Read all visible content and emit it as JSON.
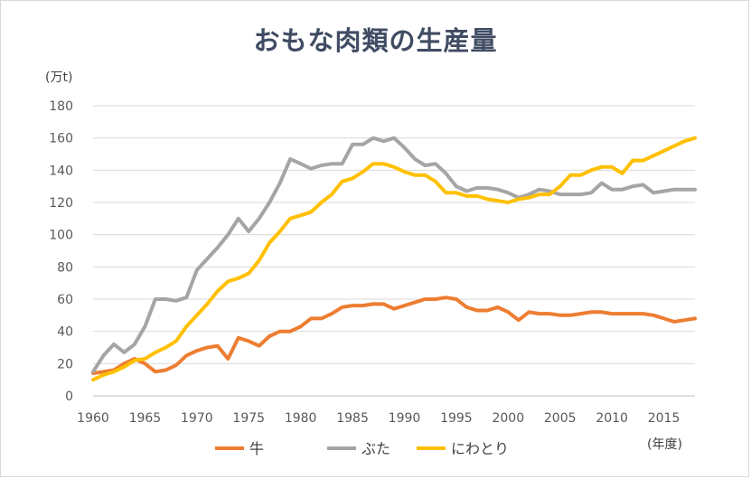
{
  "chart_data": {
    "type": "line",
    "title": "おもな肉類の生産量",
    "ylabel": "(万t)",
    "xlabel": "(年度)",
    "xlim": [
      1960,
      2018
    ],
    "ylim": [
      0,
      180
    ],
    "x_ticks": [
      1960,
      1965,
      1970,
      1975,
      1980,
      1985,
      1990,
      1995,
      2000,
      2005,
      2010,
      2015
    ],
    "y_ticks": [
      0,
      20,
      40,
      60,
      80,
      100,
      120,
      140,
      160,
      180
    ],
    "grid": "horizontal",
    "legend_position": "bottom",
    "x": [
      1960,
      1961,
      1962,
      1963,
      1964,
      1965,
      1966,
      1967,
      1968,
      1969,
      1970,
      1971,
      1972,
      1973,
      1974,
      1975,
      1976,
      1977,
      1978,
      1979,
      1980,
      1981,
      1982,
      1983,
      1984,
      1985,
      1986,
      1987,
      1988,
      1989,
      1990,
      1991,
      1992,
      1993,
      1994,
      1995,
      1996,
      1997,
      1998,
      1999,
      2000,
      2001,
      2002,
      2003,
      2004,
      2005,
      2006,
      2007,
      2008,
      2009,
      2010,
      2011,
      2012,
      2013,
      2014,
      2015,
      2016,
      2017,
      2018
    ],
    "series": [
      {
        "name": "牛",
        "color": "#ed7d31",
        "values": [
          14,
          15,
          16,
          20,
          23,
          20,
          15,
          16,
          19,
          25,
          28,
          30,
          31,
          23,
          36,
          34,
          31,
          37,
          40,
          40,
          43,
          48,
          48,
          51,
          55,
          56,
          56,
          57,
          57,
          54,
          56,
          58,
          60,
          60,
          61,
          60,
          55,
          53,
          53,
          55,
          52,
          47,
          52,
          51,
          51,
          50,
          50,
          51,
          52,
          52,
          51,
          51,
          51,
          51,
          50,
          48,
          46,
          47,
          48
        ]
      },
      {
        "name": "ぶた",
        "color": "#a5a5a5",
        "values": [
          15,
          25,
          32,
          27,
          32,
          43,
          60,
          60,
          59,
          61,
          78,
          85,
          92,
          100,
          110,
          102,
          110,
          120,
          132,
          147,
          144,
          141,
          143,
          144,
          144,
          156,
          156,
          160,
          158,
          160,
          154,
          147,
          143,
          144,
          138,
          130,
          127,
          129,
          129,
          128,
          126,
          123,
          125,
          128,
          127,
          125,
          125,
          125,
          126,
          132,
          128,
          128,
          130,
          131,
          126,
          127,
          128,
          128,
          128
        ]
      },
      {
        "name": "にわとり",
        "color": "#ffc000",
        "values": [
          10,
          13,
          15,
          18,
          22,
          23,
          27,
          30,
          34,
          43,
          50,
          57,
          65,
          71,
          73,
          76,
          84,
          95,
          102,
          110,
          112,
          114,
          120,
          125,
          133,
          135,
          139,
          144,
          144,
          142,
          139,
          137,
          137,
          133,
          126,
          126,
          124,
          124,
          122,
          121,
          120,
          122,
          123,
          125,
          125,
          130,
          137,
          137,
          140,
          142,
          142,
          138,
          146,
          146,
          149,
          152,
          155,
          158,
          160
        ]
      }
    ]
  }
}
